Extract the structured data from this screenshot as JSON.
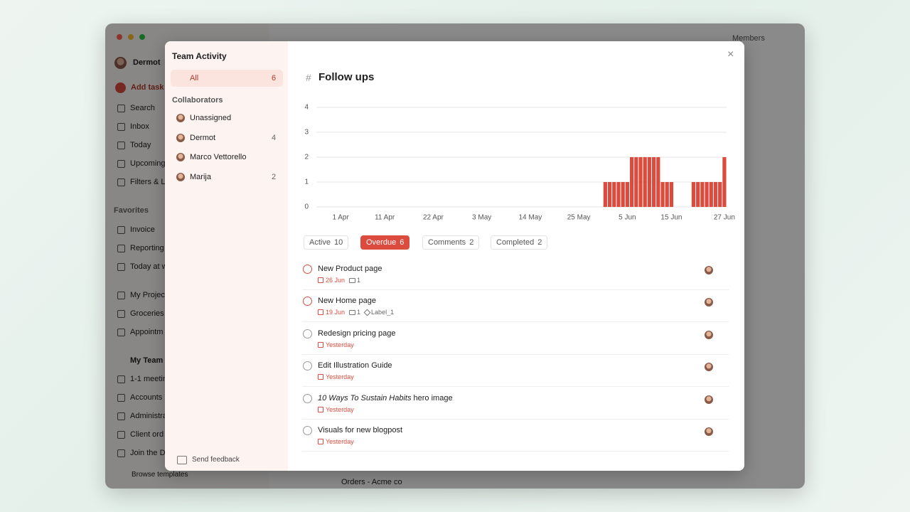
{
  "window": {
    "members": "Members",
    "bottom_row": "Orders - Acme co"
  },
  "sidebar": {
    "user": "Dermot",
    "add_task": "Add task",
    "nav": [
      "Search",
      "Inbox",
      "Today",
      "Upcoming",
      "Filters & L"
    ],
    "favorites_heading": "Favorites",
    "favorites": [
      "Invoice",
      "Reporting",
      "Today at w"
    ],
    "projects": [
      "My Projec",
      "Groceries",
      "Appointm"
    ],
    "team": "My Team",
    "team_items": [
      "1-1 meetin",
      "Accounts",
      "Administra",
      "Client ord",
      "Join the D"
    ],
    "browse": "Browse templates"
  },
  "modal": {
    "title": "Team Activity",
    "all": {
      "label": "All",
      "count": 6
    },
    "collaborators_heading": "Collaborators",
    "collaborators": [
      {
        "name": "Unassigned"
      },
      {
        "name": "Dermot",
        "count": 4
      },
      {
        "name": "Marco Vettorello"
      },
      {
        "name": "Marija",
        "count": 2
      }
    ],
    "feedback": "Send feedback",
    "project": "Follow ups",
    "tabs": [
      {
        "label": "Active",
        "count": 10
      },
      {
        "label": "Overdue",
        "count": 6
      },
      {
        "label": "Comments",
        "count": 2
      },
      {
        "label": "Completed",
        "count": 2
      }
    ],
    "tasks": [
      {
        "title": "New Product page",
        "due": "26 Jun",
        "comments": 1
      },
      {
        "title": "New Home page",
        "due": "19 Jun",
        "comments": 1,
        "label": "Label_1"
      },
      {
        "title": "Redesign pricing page",
        "due": "Yesterday"
      },
      {
        "title": "Edit Illustration Guide",
        "due": "Yesterday"
      },
      {
        "title_italic": "10 Ways To Sustain Habits",
        "title": "hero image",
        "due": "Yesterday"
      },
      {
        "title": "Visuals for new blogpost",
        "due": "Yesterday"
      }
    ]
  },
  "chart_data": {
    "type": "bar",
    "color": "#dc4c3e",
    "ylim": [
      0,
      4
    ],
    "yticks": [
      0,
      1,
      2,
      3,
      4
    ],
    "grid": true,
    "categories": [
      null,
      null,
      null,
      null,
      null,
      "1 Apr",
      null,
      null,
      null,
      null,
      null,
      null,
      null,
      null,
      null,
      "11 Apr",
      null,
      null,
      null,
      null,
      null,
      null,
      null,
      null,
      null,
      null,
      "22 Apr",
      null,
      null,
      null,
      null,
      null,
      null,
      null,
      null,
      null,
      null,
      "3 May",
      null,
      null,
      null,
      null,
      null,
      null,
      null,
      null,
      null,
      null,
      "14 May",
      null,
      null,
      null,
      null,
      null,
      null,
      null,
      null,
      null,
      null,
      "25 May",
      null,
      null,
      null,
      null,
      null,
      null,
      null,
      null,
      null,
      null,
      "5 Jun",
      null,
      null,
      null,
      null,
      null,
      null,
      null,
      null,
      null,
      "15 Jun",
      null,
      null,
      null,
      null,
      null,
      null,
      null,
      null,
      null,
      null,
      null,
      "27 Jun"
    ],
    "values": [
      0,
      0,
      0,
      0,
      0,
      0,
      0,
      0,
      0,
      0,
      0,
      0,
      0,
      0,
      0,
      0,
      0,
      0,
      0,
      0,
      0,
      0,
      0,
      0,
      0,
      0,
      0,
      0,
      0,
      0,
      0,
      0,
      0,
      0,
      0,
      0,
      0,
      0,
      0,
      0,
      0,
      0,
      0,
      0,
      0,
      0,
      0,
      0,
      0,
      0,
      0,
      0,
      0,
      0,
      0,
      0,
      0,
      0,
      0,
      0,
      0,
      0,
      0,
      0,
      0,
      1,
      1,
      1,
      1,
      1,
      1,
      2,
      2,
      2,
      2,
      2,
      2,
      2,
      1,
      1,
      1,
      0,
      0,
      0,
      0,
      1,
      1,
      1,
      1,
      1,
      1,
      1,
      2
    ]
  }
}
